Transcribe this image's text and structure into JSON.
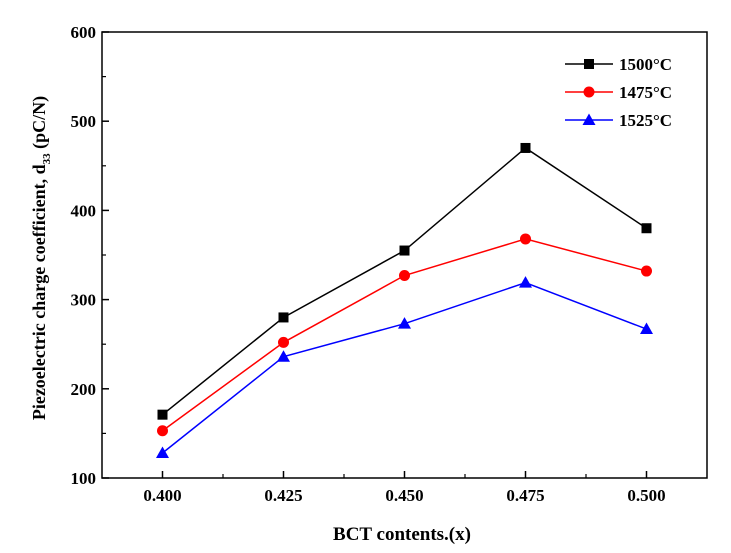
{
  "chart_data": {
    "type": "line",
    "xlabel": "BCT contents.(x)",
    "ylabel": "Piezoelectric charge coefficient, d",
    "ylabel_sub": "33",
    "ylabel_unit": " (pC/N)",
    "x": [
      0.4,
      0.425,
      0.45,
      0.475,
      0.5
    ],
    "xticks": [
      "0.400",
      "0.425",
      "0.450",
      "0.475",
      "0.500"
    ],
    "xlim": [
      0.3875,
      0.5125
    ],
    "ylim": [
      100,
      600
    ],
    "yticks": [
      "100",
      "200",
      "300",
      "400",
      "500",
      "600"
    ],
    "grid": false,
    "legend_position": "top-right",
    "series": [
      {
        "name": "1500°C",
        "color": "#000000",
        "marker": "square",
        "values": [
          171,
          280,
          355,
          470,
          380
        ]
      },
      {
        "name": "1475°C",
        "color": "#ff0000",
        "marker": "circle",
        "values": [
          153,
          252,
          327,
          368,
          332
        ]
      },
      {
        "name": "1525°C",
        "color": "#0000ff",
        "marker": "triangle",
        "values": [
          128,
          236,
          273,
          319,
          267
        ]
      }
    ]
  }
}
